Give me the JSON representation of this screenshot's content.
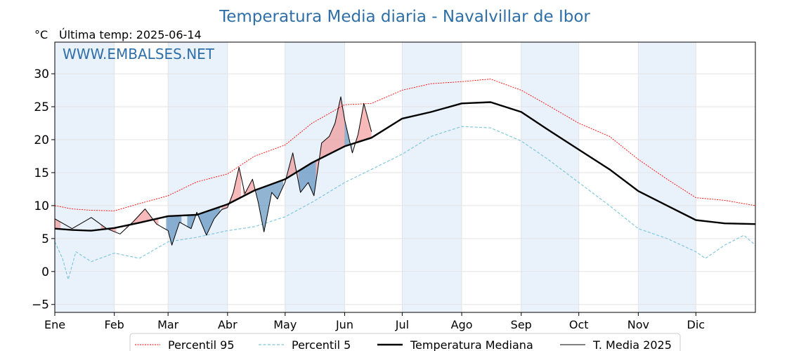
{
  "chart_data": {
    "type": "line",
    "title": "Temperatura Media diaria - Navalvillar de Ibor",
    "unit_label": "°C",
    "last_temp_label": "Última temp: 2025-06-14",
    "watermark": "WWW.EMBALSES.NET",
    "ylim": [
      -6.2,
      34.8
    ],
    "yticks": [
      -5,
      0,
      5,
      10,
      15,
      20,
      25,
      30
    ],
    "xlim": [
      1,
      366
    ],
    "month_labels": [
      "Ene",
      "Feb",
      "Mar",
      "Abr",
      "May",
      "Jun",
      "Jul",
      "Ago",
      "Sep",
      "Oct",
      "Nov",
      "Dic"
    ],
    "month_start_days": [
      1,
      32,
      60,
      91,
      121,
      152,
      182,
      213,
      244,
      274,
      305,
      335
    ],
    "grid": true,
    "legend_position": "bottom",
    "colors": {
      "p95": "#ff0000",
      "p5": "#80c8dc",
      "median": "#000000",
      "current": "#000000",
      "above_fill": "#f08080",
      "below_fill": "#4682b4",
      "band": "#e9f1fb",
      "title": "#2f6fa8"
    },
    "series": [
      {
        "key": "p95",
        "name": "Percentil 95",
        "points": [
          [
            1,
            10
          ],
          [
            10,
            9.5
          ],
          [
            20,
            9.3
          ],
          [
            32,
            9.2
          ],
          [
            45,
            10.3
          ],
          [
            60,
            11.5
          ],
          [
            75,
            13.6
          ],
          [
            91,
            14.8
          ],
          [
            105,
            17.5
          ],
          [
            121,
            19.2
          ],
          [
            135,
            22.5
          ],
          [
            152,
            25.3
          ],
          [
            166,
            25.5
          ],
          [
            182,
            27.5
          ],
          [
            197,
            28.5
          ],
          [
            213,
            28.8
          ],
          [
            228,
            29.2
          ],
          [
            244,
            27.5
          ],
          [
            258,
            25.2
          ],
          [
            274,
            22.5
          ],
          [
            290,
            20.5
          ],
          [
            305,
            17
          ],
          [
            320,
            14
          ],
          [
            335,
            11.2
          ],
          [
            350,
            10.8
          ],
          [
            366,
            10
          ]
        ]
      },
      {
        "key": "p5",
        "name": "Percentil 5",
        "points": [
          [
            1,
            4.5
          ],
          [
            5,
            2
          ],
          [
            8,
            -1.2
          ],
          [
            12,
            3
          ],
          [
            20,
            1.5
          ],
          [
            32,
            2.8
          ],
          [
            45,
            2
          ],
          [
            60,
            4.5
          ],
          [
            75,
            5.2
          ],
          [
            91,
            6.2
          ],
          [
            105,
            6.8
          ],
          [
            121,
            8.3
          ],
          [
            135,
            10.5
          ],
          [
            152,
            13.5
          ],
          [
            166,
            15.5
          ],
          [
            182,
            17.8
          ],
          [
            197,
            20.5
          ],
          [
            213,
            22
          ],
          [
            228,
            21.8
          ],
          [
            244,
            19.8
          ],
          [
            258,
            17
          ],
          [
            274,
            13.5
          ],
          [
            290,
            10
          ],
          [
            305,
            6.5
          ],
          [
            320,
            5
          ],
          [
            335,
            3
          ],
          [
            340,
            2
          ],
          [
            350,
            4
          ],
          [
            360,
            5.5
          ],
          [
            366,
            4
          ]
        ]
      },
      {
        "key": "median",
        "name": "Temperatura Mediana",
        "points": [
          [
            1,
            6.5
          ],
          [
            10,
            6.3
          ],
          [
            20,
            6.2
          ],
          [
            32,
            6.6
          ],
          [
            45,
            7.4
          ],
          [
            60,
            8.4
          ],
          [
            75,
            8.6
          ],
          [
            91,
            10.2
          ],
          [
            105,
            12.3
          ],
          [
            121,
            14
          ],
          [
            135,
            16.5
          ],
          [
            152,
            19
          ],
          [
            166,
            20.3
          ],
          [
            182,
            23.2
          ],
          [
            197,
            24.2
          ],
          [
            213,
            25.5
          ],
          [
            228,
            25.7
          ],
          [
            244,
            24.2
          ],
          [
            258,
            21.5
          ],
          [
            274,
            18.5
          ],
          [
            290,
            15.5
          ],
          [
            305,
            12.2
          ],
          [
            320,
            10
          ],
          [
            335,
            7.8
          ],
          [
            350,
            7.3
          ],
          [
            366,
            7.2
          ]
        ]
      },
      {
        "key": "current",
        "name": "T. Media 2025",
        "points": [
          [
            1,
            8
          ],
          [
            10,
            6.5
          ],
          [
            20,
            8.2
          ],
          [
            28,
            6.5
          ],
          [
            35,
            5.7
          ],
          [
            42,
            7.6
          ],
          [
            48,
            9.5
          ],
          [
            54,
            7.2
          ],
          [
            60,
            6.2
          ],
          [
            62,
            4
          ],
          [
            66,
            7.5
          ],
          [
            72,
            6.5
          ],
          [
            75,
            9
          ],
          [
            80,
            5.5
          ],
          [
            84,
            8
          ],
          [
            88,
            9.4
          ],
          [
            91,
            9.7
          ],
          [
            94,
            12
          ],
          [
            97,
            15.8
          ],
          [
            100,
            11.8
          ],
          [
            104,
            14
          ],
          [
            107,
            10.5
          ],
          [
            110,
            6
          ],
          [
            114,
            12
          ],
          [
            117,
            11
          ],
          [
            121,
            13.6
          ],
          [
            125,
            18
          ],
          [
            129,
            12
          ],
          [
            133,
            13.5
          ],
          [
            136,
            11.5
          ],
          [
            140,
            19.5
          ],
          [
            144,
            20.5
          ],
          [
            147,
            22.5
          ],
          [
            150,
            26.5
          ],
          [
            152,
            23
          ],
          [
            156,
            18
          ],
          [
            159,
            20.8
          ],
          [
            162,
            25.5
          ],
          [
            166,
            21.2
          ]
        ]
      }
    ],
    "fill_regions": [
      {
        "type": "above",
        "from_day": 1,
        "to_day": 4
      },
      {
        "type": "above",
        "from_day": 25,
        "to_day": 33
      },
      {
        "type": "above",
        "from_day": 38,
        "to_day": 44
      },
      {
        "type": "above",
        "from_day": 44,
        "to_day": 55
      },
      {
        "type": "above",
        "from_day": 88,
        "to_day": 98
      },
      {
        "type": "above",
        "from_day": 99,
        "to_day": 106
      },
      {
        "type": "above",
        "from_day": 122,
        "to_day": 128
      },
      {
        "type": "above",
        "from_day": 137,
        "to_day": 152
      },
      {
        "type": "above",
        "from_day": 157,
        "to_day": 166
      },
      {
        "type": "below",
        "from_day": 59,
        "to_day": 67
      },
      {
        "type": "below",
        "from_day": 70,
        "to_day": 87
      },
      {
        "type": "below",
        "from_day": 106,
        "to_day": 120
      },
      {
        "type": "below",
        "from_day": 128,
        "to_day": 137
      },
      {
        "type": "below",
        "from_day": 152,
        "to_day": 156
      }
    ]
  }
}
